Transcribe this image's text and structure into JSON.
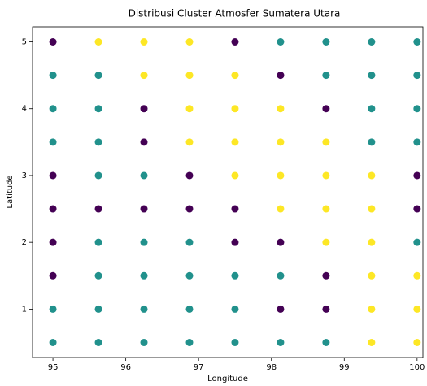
{
  "chart_data": {
    "type": "scatter",
    "title": "Distribusi Cluster Atmosfer Sumatera Utara",
    "x_label": "Longitude",
    "y_label": "Latitude",
    "xlim": [
      94.72,
      100.08
    ],
    "xticks": [
      95,
      96,
      97,
      98,
      99,
      100
    ],
    "ylim": [
      0.275,
      5.225
    ],
    "yticks": [
      1,
      2,
      3,
      4,
      5
    ],
    "series": [
      {
        "color": "#440154",
        "x": [
          95,
          97.5,
          98.125,
          96.25,
          98.75,
          96.25,
          95,
          96.875,
          100,
          95,
          95.625,
          96.25,
          96.875,
          97.5,
          100,
          95,
          97.5,
          98.125,
          95,
          98.75,
          98.125,
          98.75
        ],
        "values": [
          5,
          5,
          4.5,
          4,
          4,
          3.5,
          3,
          3,
          3,
          2.5,
          2.5,
          2.5,
          2.5,
          2.5,
          2.5,
          2,
          2,
          2,
          1.5,
          1.5,
          1,
          1
        ]
      },
      {
        "color": "#21918c",
        "x": [
          98.125,
          98.75,
          99.375,
          100,
          95,
          95.625,
          98.75,
          99.375,
          100,
          95,
          95.625,
          99.375,
          100,
          95,
          95.625,
          99.375,
          100,
          95.625,
          96.25,
          95.625,
          96.25,
          96.875,
          100,
          95.625,
          96.25,
          96.875,
          97.5,
          98.125,
          95,
          95.625,
          96.25,
          96.875,
          97.5,
          95,
          95.625,
          96.25,
          96.875,
          97.5,
          98.125,
          98.75
        ],
        "values": [
          5,
          5,
          5,
          5,
          4.5,
          4.5,
          4.5,
          4.5,
          4.5,
          4,
          4,
          4,
          4,
          3.5,
          3.5,
          3.5,
          3.5,
          3,
          3,
          2,
          2,
          2,
          2,
          1.5,
          1.5,
          1.5,
          1.5,
          1.5,
          1,
          1,
          1,
          1,
          1,
          0.5,
          0.5,
          0.5,
          0.5,
          0.5,
          0.5,
          0.5
        ]
      },
      {
        "color": "#fde725",
        "x": [
          95.625,
          96.25,
          96.875,
          96.25,
          96.875,
          97.5,
          96.875,
          97.5,
          98.125,
          96.875,
          97.5,
          98.125,
          98.75,
          97.5,
          98.125,
          98.75,
          99.375,
          98.125,
          98.75,
          99.375,
          98.75,
          99.375,
          99.375,
          100,
          99.375,
          100,
          99.375,
          100
        ],
        "values": [
          5,
          5,
          5,
          4.5,
          4.5,
          4.5,
          4,
          4,
          4,
          3.5,
          3.5,
          3.5,
          3.5,
          3,
          3,
          3,
          3,
          2.5,
          2.5,
          2.5,
          2,
          2,
          1.5,
          1.5,
          1,
          1,
          0.5,
          0.5
        ]
      }
    ]
  }
}
